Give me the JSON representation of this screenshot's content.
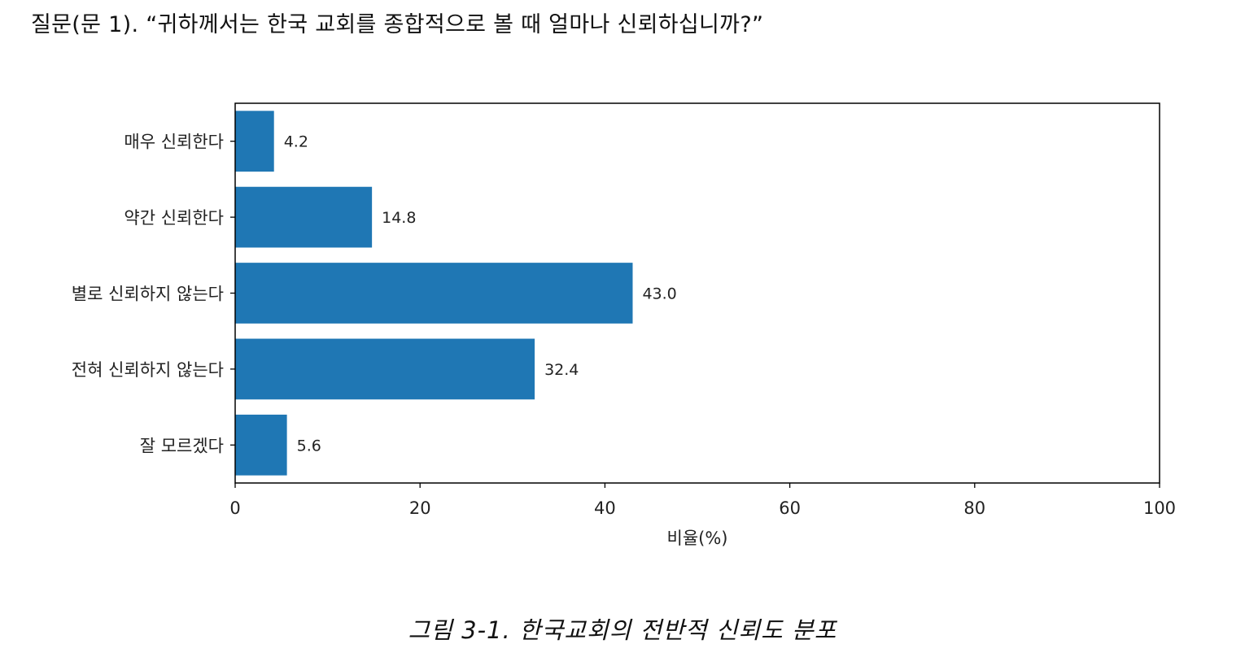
{
  "question": "질문(문 1). “귀하께서는 한국 교회를 종합적으로 볼 때 얼마나 신뢰하십니까?”",
  "caption": "그림 3-1. 한국교회의 전반적 신뢰도 분포",
  "colors": {
    "bar": "#1f77b4",
    "axis": "#000000",
    "text": "#222222"
  },
  "chart_data": {
    "type": "bar",
    "orientation": "horizontal",
    "categories": [
      "매우 신뢰한다",
      "약간 신뢰한다",
      "별로 신뢰하지 않는다",
      "전혀 신뢰하지 않는다",
      "잘 모르겠다"
    ],
    "values": [
      4.2,
      14.8,
      43.0,
      32.4,
      5.6
    ],
    "value_labels": [
      "4.2",
      "14.8",
      "43.0",
      "32.4",
      "5.6"
    ],
    "xlabel": "비율(%)",
    "ylabel": "",
    "title": "",
    "xlim": [
      0,
      100
    ],
    "xticks": [
      0,
      20,
      40,
      60,
      80,
      100
    ],
    "grid": false,
    "legend": "none"
  }
}
